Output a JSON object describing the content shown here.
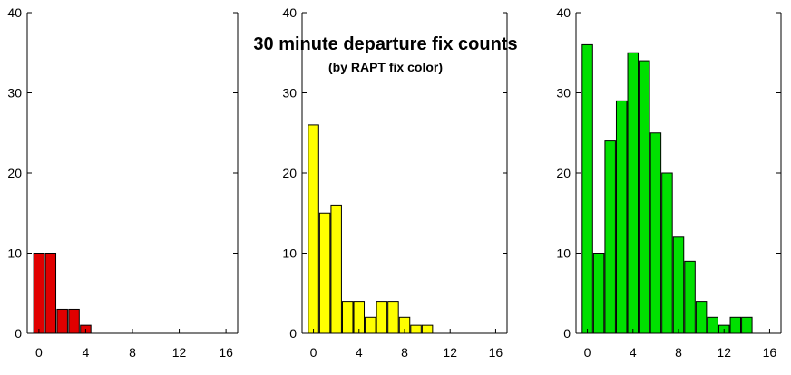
{
  "title": "30 minute departure fix counts",
  "subtitle": "(by RAPT fix color)",
  "chart_data": [
    {
      "type": "bar",
      "color": "#e00000",
      "x": [
        0,
        1,
        2,
        3,
        4
      ],
      "values": [
        10,
        10,
        3,
        3,
        1
      ],
      "xlim": [
        -1,
        17
      ],
      "ylim": [
        0,
        40
      ],
      "xticks": [
        "0",
        "4",
        "8",
        "12",
        "16"
      ],
      "yticks": [
        "0",
        "10",
        "20",
        "30",
        "40"
      ],
      "grid": false
    },
    {
      "type": "bar",
      "color": "#ffff00",
      "x": [
        0,
        1,
        2,
        3,
        4,
        5,
        6,
        7,
        8,
        9,
        10
      ],
      "values": [
        26,
        15,
        16,
        4,
        4,
        2,
        4,
        4,
        2,
        1,
        1
      ],
      "xlim": [
        -1,
        17
      ],
      "ylim": [
        0,
        40
      ],
      "xticks": [
        "0",
        "4",
        "8",
        "12",
        "16"
      ],
      "yticks": [
        "0",
        "10",
        "20",
        "30",
        "40"
      ],
      "grid": false
    },
    {
      "type": "bar",
      "color": "#00e000",
      "x": [
        0,
        1,
        2,
        3,
        4,
        5,
        6,
        7,
        8,
        9,
        10,
        11,
        12,
        13,
        14
      ],
      "values": [
        36,
        10,
        24,
        29,
        35,
        34,
        25,
        20,
        12,
        9,
        4,
        2,
        1,
        2,
        2
      ],
      "xlim": [
        -1,
        17
      ],
      "ylim": [
        0,
        40
      ],
      "xticks": [
        "0",
        "4",
        "8",
        "12",
        "16"
      ],
      "yticks": [
        "0",
        "10",
        "20",
        "30",
        "40"
      ],
      "grid": false
    }
  ]
}
